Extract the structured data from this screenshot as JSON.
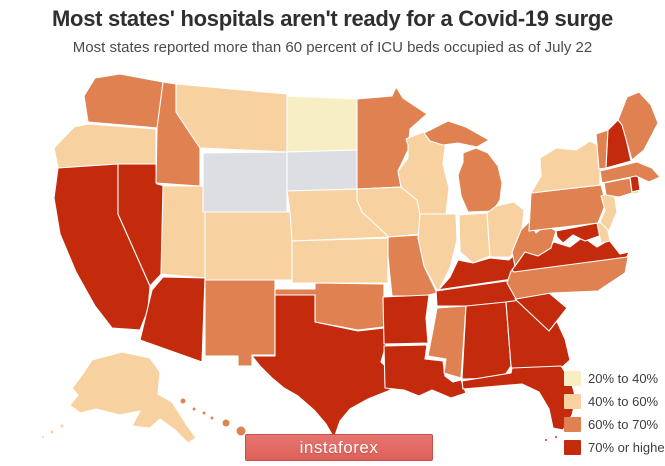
{
  "header": {
    "title": "Most states' hospitals aren't ready for a Covid-19 surge",
    "subtitle": "Most states reported more than 60 percent of ICU beds occupied as of July 22"
  },
  "watermark": {
    "label": "instaforex",
    "background_color": "#E26963"
  },
  "legend": {
    "items": [
      {
        "key": "20-40",
        "label": "20% to 40%",
        "color": "#F8EEC3"
      },
      {
        "key": "40-60",
        "label": "40% to 60%",
        "color": "#F8D1A1"
      },
      {
        "key": "60-70",
        "label": "60% to 70%",
        "color": "#DF8151"
      },
      {
        "key": "70+",
        "label": "70% or higher",
        "color": "#C32B0C"
      }
    ],
    "no_data_color": "#DCDEE3",
    "position": "bottom-right"
  },
  "chart_data": {
    "type": "choropleth-map",
    "title": "Most states' hospitals aren't ready for a Covid-19 surge",
    "subtitle": "Most states reported more than 60 percent of ICU beds occupied as of July 22",
    "metric": "Share of ICU beds occupied as of July 22",
    "bins": [
      "20% to 40%",
      "40% to 60%",
      "60% to 70%",
      "70% or higher"
    ],
    "states": [
      {
        "id": "WA",
        "name": "Washington",
        "category": "60-70"
      },
      {
        "id": "OR",
        "name": "Oregon",
        "category": "40-60"
      },
      {
        "id": "CA",
        "name": "California",
        "category": "70+"
      },
      {
        "id": "NV",
        "name": "Nevada",
        "category": "70+"
      },
      {
        "id": "ID",
        "name": "Idaho",
        "category": "60-70"
      },
      {
        "id": "MT",
        "name": "Montana",
        "category": "40-60"
      },
      {
        "id": "WY",
        "name": "Wyoming",
        "category": "no-data"
      },
      {
        "id": "UT",
        "name": "Utah",
        "category": "40-60"
      },
      {
        "id": "CO",
        "name": "Colorado",
        "category": "40-60"
      },
      {
        "id": "AZ",
        "name": "Arizona",
        "category": "70+"
      },
      {
        "id": "NM",
        "name": "New Mexico",
        "category": "60-70"
      },
      {
        "id": "ND",
        "name": "North Dakota",
        "category": "20-40"
      },
      {
        "id": "SD",
        "name": "South Dakota",
        "category": "no-data"
      },
      {
        "id": "NE",
        "name": "Nebraska",
        "category": "40-60"
      },
      {
        "id": "KS",
        "name": "Kansas",
        "category": "40-60"
      },
      {
        "id": "OK",
        "name": "Oklahoma",
        "category": "60-70"
      },
      {
        "id": "TX",
        "name": "Texas",
        "category": "70+"
      },
      {
        "id": "MN",
        "name": "Minnesota",
        "category": "60-70"
      },
      {
        "id": "IA",
        "name": "Iowa",
        "category": "40-60"
      },
      {
        "id": "MO",
        "name": "Missouri",
        "category": "60-70"
      },
      {
        "id": "AR",
        "name": "Arkansas",
        "category": "70+"
      },
      {
        "id": "LA",
        "name": "Louisiana",
        "category": "70+"
      },
      {
        "id": "WI",
        "name": "Wisconsin",
        "category": "40-60"
      },
      {
        "id": "IL",
        "name": "Illinois",
        "category": "40-60"
      },
      {
        "id": "MI",
        "name": "Michigan",
        "category": "60-70"
      },
      {
        "id": "IN",
        "name": "Indiana",
        "category": "40-60"
      },
      {
        "id": "OH",
        "name": "Ohio",
        "category": "40-60"
      },
      {
        "id": "KY",
        "name": "Kentucky",
        "category": "70+"
      },
      {
        "id": "TN",
        "name": "Tennessee",
        "category": "70+"
      },
      {
        "id": "MS",
        "name": "Mississippi",
        "category": "60-70"
      },
      {
        "id": "AL",
        "name": "Alabama",
        "category": "70+"
      },
      {
        "id": "GA",
        "name": "Georgia",
        "category": "70+"
      },
      {
        "id": "FL",
        "name": "Florida",
        "category": "70+"
      },
      {
        "id": "SC",
        "name": "South Carolina",
        "category": "70+"
      },
      {
        "id": "NC",
        "name": "North Carolina",
        "category": "60-70"
      },
      {
        "id": "VA",
        "name": "Virginia",
        "category": "70+"
      },
      {
        "id": "WV",
        "name": "West Virginia",
        "category": "60-70"
      },
      {
        "id": "MD",
        "name": "Maryland",
        "category": "70+"
      },
      {
        "id": "DE",
        "name": "Delaware",
        "category": "40-60"
      },
      {
        "id": "PA",
        "name": "Pennsylvania",
        "category": "60-70"
      },
      {
        "id": "NJ",
        "name": "New Jersey",
        "category": "40-60"
      },
      {
        "id": "NY",
        "name": "New York",
        "category": "40-60"
      },
      {
        "id": "CT",
        "name": "Connecticut",
        "category": "60-70"
      },
      {
        "id": "RI",
        "name": "Rhode Island",
        "category": "70+"
      },
      {
        "id": "MA",
        "name": "Massachusetts",
        "category": "60-70"
      },
      {
        "id": "VT",
        "name": "Vermont",
        "category": "60-70"
      },
      {
        "id": "NH",
        "name": "New Hampshire",
        "category": "70+"
      },
      {
        "id": "ME",
        "name": "Maine",
        "category": "60-70"
      },
      {
        "id": "AK",
        "name": "Alaska",
        "category": "40-60"
      },
      {
        "id": "HI",
        "name": "Hawaii",
        "category": "60-70"
      }
    ]
  }
}
